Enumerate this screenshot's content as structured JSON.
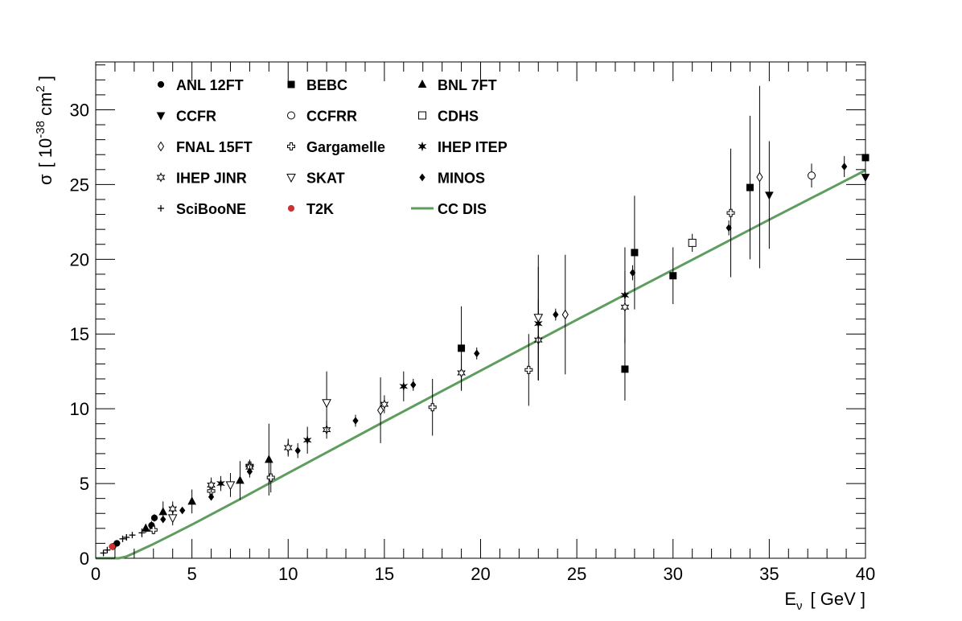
{
  "chart_data": {
    "type": "scatter",
    "title": "",
    "xlabel": {
      "main": "E",
      "sub": "ν",
      "unit": "[ GeV ]"
    },
    "ylabel": {
      "main": "σ",
      "open": "[ 10",
      "exp": "-38",
      "unit": " cm",
      "unit_exp": "2",
      "close": " ]"
    },
    "xlim": [
      0,
      40
    ],
    "ylim": [
      0,
      33.2
    ],
    "xticks": [
      0,
      5,
      10,
      15,
      20,
      25,
      30,
      35,
      40
    ],
    "yticks": [
      0,
      5,
      10,
      15,
      20,
      25,
      30
    ],
    "xtick_labels": [
      "0",
      "5",
      "10",
      "15",
      "20",
      "25",
      "30",
      "35",
      "40"
    ],
    "ytick_labels": [
      "0",
      "5",
      "10",
      "15",
      "20",
      "25",
      "30"
    ],
    "grid": false,
    "legend_position": "top-left",
    "series": [
      {
        "name": "ANL 12FT",
        "marker": "circle",
        "color": "#000000",
        "points": [
          [
            0.9,
            0.8,
            0.15
          ],
          [
            1.1,
            1.0,
            0.15
          ],
          [
            2.9,
            2.2,
            0.3
          ],
          [
            3.05,
            2.7,
            0.25
          ]
        ]
      },
      {
        "name": "BEBC",
        "marker": "square",
        "color": "#000000",
        "points": [
          [
            19.0,
            14.05,
            2.8
          ],
          [
            27.5,
            12.65,
            2.1
          ],
          [
            28.0,
            20.45,
            3.8
          ],
          [
            30.0,
            18.9,
            1.9
          ],
          [
            34.0,
            24.8,
            4.8
          ],
          [
            40.0,
            26.8,
            5.0
          ]
        ]
      },
      {
        "name": "BNL 7FT",
        "marker": "triangle-up",
        "color": "#000000",
        "points": [
          [
            2.6,
            2.0,
            0.3
          ],
          [
            3.5,
            3.1,
            0.7
          ],
          [
            5.0,
            3.8,
            0.8
          ],
          [
            7.5,
            5.2,
            1.3
          ],
          [
            9.0,
            6.6,
            2.4
          ]
        ]
      },
      {
        "name": "CCFR",
        "marker": "triangle-down",
        "color": "#000000",
        "points": [
          [
            35.0,
            24.3,
            3.6
          ],
          [
            40.0,
            25.5,
            3.5
          ]
        ]
      },
      {
        "name": "CCFRR",
        "marker": "circle-open",
        "color": "#000000",
        "points": [
          [
            37.2,
            25.6,
            0.8
          ]
        ]
      },
      {
        "name": "CDHS",
        "marker": "square-open",
        "color": "#000000",
        "points": [
          [
            31.0,
            21.1,
            0.6
          ]
        ]
      },
      {
        "name": "FNAL 15FT",
        "marker": "diamond-open",
        "color": "#000000",
        "points": [
          [
            14.8,
            9.9,
            2.2
          ],
          [
            24.4,
            16.3,
            4.0
          ],
          [
            34.5,
            25.5,
            6.1
          ]
        ]
      },
      {
        "name": "Gargamelle",
        "marker": "cross-open",
        "color": "#000000",
        "points": [
          [
            3.0,
            1.9,
            0.3
          ],
          [
            6.0,
            4.5,
            0.5
          ],
          [
            8.0,
            6.2,
            0.4
          ],
          [
            9.1,
            5.4,
            1.0
          ],
          [
            17.5,
            10.1,
            1.9
          ],
          [
            22.5,
            12.6,
            2.4
          ],
          [
            33.0,
            23.1,
            4.3
          ]
        ]
      },
      {
        "name": "IHEP ITEP",
        "marker": "star",
        "color": "#000000",
        "points": [
          [
            6.5,
            5.0,
            0.5
          ],
          [
            10.0,
            7.4,
            0.6
          ],
          [
            11.0,
            7.9,
            0.9
          ],
          [
            16.0,
            11.5,
            1.0
          ],
          [
            23.0,
            15.7,
            3.8
          ],
          [
            27.5,
            17.6,
            3.2
          ]
        ]
      },
      {
        "name": "IHEP JINR",
        "marker": "star-open",
        "color": "#000000",
        "points": [
          [
            4.0,
            3.3,
            0.5
          ],
          [
            6.0,
            4.9,
            0.5
          ],
          [
            8.0,
            6.1,
            0.4
          ],
          [
            10.0,
            7.4,
            0.5
          ],
          [
            12.0,
            8.6,
            0.6
          ],
          [
            15.0,
            10.3,
            0.6
          ],
          [
            19.0,
            12.4,
            1.2
          ],
          [
            23.0,
            14.6,
            2.7
          ],
          [
            27.5,
            16.8,
            2.4
          ]
        ]
      },
      {
        "name": "SKAT",
        "marker": "triangle-down-open",
        "color": "#000000",
        "points": [
          [
            4.0,
            2.7,
            0.5
          ],
          [
            7.0,
            4.9,
            0.8
          ],
          [
            12.0,
            10.4,
            2.1
          ],
          [
            23.0,
            16.1,
            4.2
          ]
        ]
      },
      {
        "name": "MINOS",
        "marker": "diamond",
        "color": "#000000",
        "points": [
          [
            3.5,
            2.6,
            0.2
          ],
          [
            4.5,
            3.2,
            0.2
          ],
          [
            6.0,
            4.1,
            0.2
          ],
          [
            8.0,
            5.8,
            0.4
          ],
          [
            10.5,
            7.2,
            0.5
          ],
          [
            13.5,
            9.2,
            0.4
          ],
          [
            16.5,
            11.6,
            0.4
          ],
          [
            19.8,
            13.7,
            0.4
          ],
          [
            23.9,
            16.3,
            0.4
          ],
          [
            27.9,
            19.1,
            0.5
          ],
          [
            32.9,
            22.1,
            0.5
          ],
          [
            38.9,
            26.2,
            0.7
          ]
        ]
      },
      {
        "name": "SciBooNE",
        "marker": "plus",
        "color": "#000000",
        "points": [
          [
            0.4,
            0.35,
            0.1
          ],
          [
            0.6,
            0.55,
            0.1
          ],
          [
            0.9,
            0.75,
            0.1
          ],
          [
            1.1,
            1.0,
            0.15
          ],
          [
            1.4,
            1.3,
            0.2
          ],
          [
            1.6,
            1.4,
            0.2
          ],
          [
            1.9,
            1.55,
            0.2
          ],
          [
            2.4,
            1.7,
            0.3
          ]
        ]
      },
      {
        "name": "T2K",
        "marker": "circle",
        "color": "#cc3333",
        "points": [
          [
            0.85,
            0.78,
            0.1
          ]
        ]
      }
    ],
    "lines": [
      {
        "name": "CC DIS",
        "color": "#5f9d5f",
        "x": [
          0,
          0.6,
          1.2,
          1.6,
          2,
          2.5,
          3,
          4,
          5,
          7.5,
          10,
          15,
          20,
          25,
          30,
          35,
          40
        ],
        "y": [
          0,
          0,
          0,
          0.12,
          0.35,
          0.65,
          0.95,
          1.6,
          2.25,
          3.95,
          5.7,
          9.15,
          12.55,
          15.95,
          19.3,
          22.65,
          25.95
        ]
      }
    ],
    "legend_columns": 3
  }
}
